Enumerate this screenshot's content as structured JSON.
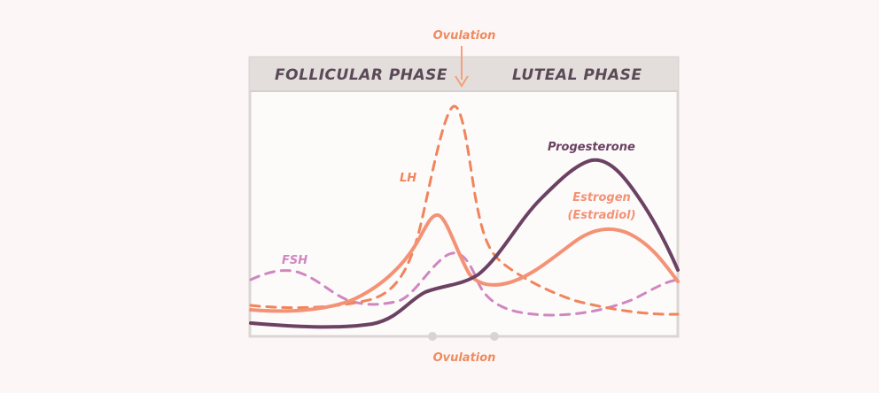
{
  "header": {
    "left_phase": "FOLLICULAR PHASE",
    "right_phase": "LUTEAL PHASE"
  },
  "ovulation": {
    "top_label": "Ovulation",
    "bottom_label": "Ovulation"
  },
  "hormones": {
    "lh": {
      "label": "LH",
      "color": "#f0855c",
      "style": "dashed"
    },
    "fsh": {
      "label": "FSH",
      "color": "#cf87c0",
      "style": "dashed"
    },
    "progesterone": {
      "label": "Progesterone",
      "color": "#6b4262",
      "style": "solid"
    },
    "estrogen": {
      "label_line1": "Estrogen",
      "label_line2": "(Estradiol)",
      "color": "#f39275",
      "style": "solid"
    }
  },
  "colors": {
    "background": "#fcf7f6",
    "frame": "#dcd6d3",
    "header_band": "#e3dedb",
    "header_text": "#5a4a57",
    "ovulation_arrow": "#f4a07a",
    "ovulation_text": "#f08a5e"
  }
}
